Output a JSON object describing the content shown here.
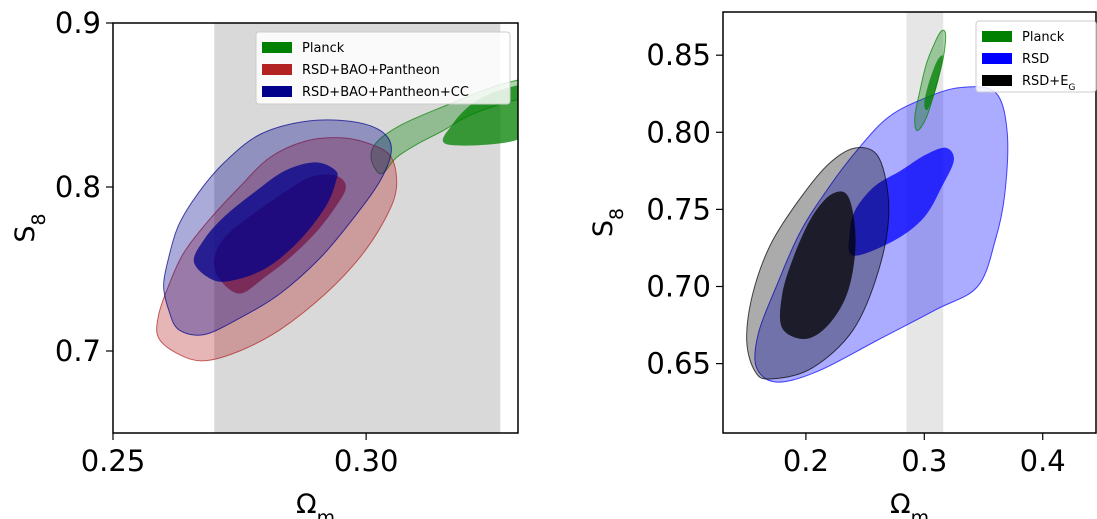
{
  "chart_data": [
    {
      "type": "contour",
      "xlabel": "Ω_m",
      "ylabel": "S_8",
      "xlim": [
        0.25,
        0.33
      ],
      "ylim": [
        0.65,
        0.9
      ],
      "xticks": [
        "0.25",
        "0.30"
      ],
      "xtick_values": [
        0.25,
        0.3
      ],
      "yticks": [
        "0.7",
        "0.8",
        "0.9"
      ],
      "ytick_values": [
        0.7,
        0.8,
        0.9
      ],
      "shaded_band": {
        "x_range": [
          0.27,
          0.3265
        ],
        "color": "#d9d9d9"
      },
      "legend_position": "top-right",
      "series": [
        {
          "name": "Planck",
          "color": "#008000",
          "inner": [
            [
              0.329,
              0.828
            ],
            [
              0.333,
              0.84
            ],
            [
              0.336,
              0.856
            ],
            [
              0.336,
              0.862
            ],
            [
              0.33,
              0.862
            ],
            [
              0.322,
              0.853
            ],
            [
              0.317,
              0.838
            ],
            [
              0.316,
              0.826
            ]
          ],
          "outer": [
            [
              0.303,
              0.808
            ],
            [
              0.306,
              0.818
            ],
            [
              0.31,
              0.826
            ],
            [
              0.315,
              0.834
            ],
            [
              0.32,
              0.843
            ],
            [
              0.326,
              0.85
            ],
            [
              0.333,
              0.856
            ],
            [
              0.337,
              0.862
            ],
            [
              0.339,
              0.866
            ],
            [
              0.339,
              0.868
            ],
            [
              0.335,
              0.868
            ],
            [
              0.326,
              0.862
            ],
            [
              0.316,
              0.85
            ],
            [
              0.307,
              0.838
            ],
            [
              0.302,
              0.827
            ],
            [
              0.301,
              0.817
            ]
          ]
        },
        {
          "name": "RSD+BAO+Pantheon",
          "color": "#b22222",
          "inner": [
            [
              0.275,
              0.735
            ],
            [
              0.28,
              0.745
            ],
            [
              0.285,
              0.757
            ],
            [
              0.29,
              0.772
            ],
            [
              0.294,
              0.788
            ],
            [
              0.296,
              0.8
            ],
            [
              0.294,
              0.807
            ],
            [
              0.289,
              0.806
            ],
            [
              0.283,
              0.795
            ],
            [
              0.277,
              0.782
            ],
            [
              0.272,
              0.769
            ],
            [
              0.27,
              0.756
            ],
            [
              0.271,
              0.744
            ]
          ],
          "outer": [
            [
              0.268,
              0.694
            ],
            [
              0.275,
              0.7
            ],
            [
              0.283,
              0.713
            ],
            [
              0.292,
              0.735
            ],
            [
              0.299,
              0.758
            ],
            [
              0.304,
              0.782
            ],
            [
              0.306,
              0.8
            ],
            [
              0.305,
              0.818
            ],
            [
              0.301,
              0.826
            ],
            [
              0.295,
              0.83
            ],
            [
              0.288,
              0.828
            ],
            [
              0.281,
              0.818
            ],
            [
              0.275,
              0.8
            ],
            [
              0.269,
              0.78
            ],
            [
              0.264,
              0.76
            ],
            [
              0.261,
              0.74
            ],
            [
              0.259,
              0.722
            ],
            [
              0.259,
              0.708
            ],
            [
              0.263,
              0.698
            ]
          ]
        },
        {
          "name": "RSD+BAO+Pantheon+CC",
          "color": "#00008b",
          "inner": [
            [
              0.27,
              0.743
            ],
            [
              0.275,
              0.744
            ],
            [
              0.281,
              0.752
            ],
            [
              0.287,
              0.768
            ],
            [
              0.292,
              0.788
            ],
            [
              0.294,
              0.803
            ],
            [
              0.294,
              0.81
            ],
            [
              0.29,
              0.815
            ],
            [
              0.284,
              0.81
            ],
            [
              0.278,
              0.797
            ],
            [
              0.272,
              0.782
            ],
            [
              0.268,
              0.768
            ],
            [
              0.266,
              0.754
            ]
          ],
          "outer": [
            [
              0.268,
              0.71
            ],
            [
              0.275,
              0.72
            ],
            [
              0.283,
              0.735
            ],
            [
              0.291,
              0.757
            ],
            [
              0.298,
              0.783
            ],
            [
              0.303,
              0.805
            ],
            [
              0.305,
              0.823
            ],
            [
              0.303,
              0.834
            ],
            [
              0.297,
              0.84
            ],
            [
              0.288,
              0.84
            ],
            [
              0.279,
              0.832
            ],
            [
              0.272,
              0.815
            ],
            [
              0.267,
              0.797
            ],
            [
              0.263,
              0.777
            ],
            [
              0.261,
              0.757
            ],
            [
              0.26,
              0.74
            ],
            [
              0.261,
              0.725
            ],
            [
              0.263,
              0.713
            ]
          ]
        }
      ]
    },
    {
      "type": "contour",
      "xlabel": "Ω_m",
      "ylabel": "S_8",
      "xlim": [
        0.13,
        0.445
      ],
      "ylim": [
        0.605,
        0.878
      ],
      "xticks": [
        "0.2",
        "0.3",
        "0.4"
      ],
      "xtick_values": [
        0.2,
        0.3,
        0.4
      ],
      "yticks": [
        "0.65",
        "0.70",
        "0.75",
        "0.80",
        "0.85"
      ],
      "ytick_values": [
        0.65,
        0.7,
        0.75,
        0.8,
        0.85
      ],
      "shaded_band": {
        "x_range": [
          0.285,
          0.316
        ],
        "color": "#e6e6e6"
      },
      "legend_position": "top-right",
      "series": [
        {
          "name": "RSD",
          "color": "#0000ff",
          "inner": [
            [
              0.24,
              0.72
            ],
            [
              0.275,
              0.73
            ],
            [
              0.3,
              0.745
            ],
            [
              0.315,
              0.765
            ],
            [
              0.325,
              0.782
            ],
            [
              0.318,
              0.79
            ],
            [
              0.3,
              0.785
            ],
            [
              0.28,
              0.775
            ],
            [
              0.258,
              0.765
            ],
            [
              0.242,
              0.75
            ],
            [
              0.237,
              0.735
            ]
          ],
          "outer": [
            [
              0.175,
              0.638
            ],
            [
              0.21,
              0.645
            ],
            [
              0.26,
              0.665
            ],
            [
              0.31,
              0.685
            ],
            [
              0.345,
              0.7
            ],
            [
              0.36,
              0.73
            ],
            [
              0.368,
              0.76
            ],
            [
              0.37,
              0.8
            ],
            [
              0.36,
              0.826
            ],
            [
              0.33,
              0.829
            ],
            [
              0.3,
              0.822
            ],
            [
              0.27,
              0.81
            ],
            [
              0.245,
              0.79
            ],
            [
              0.22,
              0.765
            ],
            [
              0.195,
              0.735
            ],
            [
              0.175,
              0.7
            ],
            [
              0.16,
              0.67
            ],
            [
              0.158,
              0.648
            ]
          ]
        },
        {
          "name": "RSD+E_G",
          "color": "#000000",
          "inner": [
            [
              0.2,
              0.666
            ],
            [
              0.22,
              0.676
            ],
            [
              0.236,
              0.698
            ],
            [
              0.242,
              0.73
            ],
            [
              0.236,
              0.758
            ],
            [
              0.222,
              0.76
            ],
            [
              0.205,
              0.745
            ],
            [
              0.19,
              0.72
            ],
            [
              0.18,
              0.695
            ],
            [
              0.18,
              0.673
            ]
          ],
          "outer": [
            [
              0.17,
              0.64
            ],
            [
              0.205,
              0.647
            ],
            [
              0.24,
              0.672
            ],
            [
              0.262,
              0.712
            ],
            [
              0.27,
              0.75
            ],
            [
              0.262,
              0.783
            ],
            [
              0.243,
              0.79
            ],
            [
              0.22,
              0.78
            ],
            [
              0.195,
              0.757
            ],
            [
              0.17,
              0.727
            ],
            [
              0.155,
              0.695
            ],
            [
              0.15,
              0.665
            ],
            [
              0.157,
              0.645
            ]
          ]
        },
        {
          "name": "Planck",
          "color": "#008000",
          "inner": [
            [
              0.303,
              0.815
            ],
            [
              0.31,
              0.828
            ],
            [
              0.315,
              0.845
            ],
            [
              0.315,
              0.85
            ],
            [
              0.31,
              0.845
            ],
            [
              0.303,
              0.83
            ],
            [
              0.3,
              0.818
            ]
          ],
          "outer": [
            [
              0.294,
              0.801
            ],
            [
              0.302,
              0.81
            ],
            [
              0.31,
              0.83
            ],
            [
              0.316,
              0.848
            ],
            [
              0.318,
              0.863
            ],
            [
              0.315,
              0.866
            ],
            [
              0.31,
              0.86
            ],
            [
              0.302,
              0.845
            ],
            [
              0.296,
              0.826
            ],
            [
              0.292,
              0.81
            ]
          ]
        }
      ],
      "legend_order": [
        "Planck",
        "RSD",
        "RSD+E_G"
      ]
    }
  ]
}
